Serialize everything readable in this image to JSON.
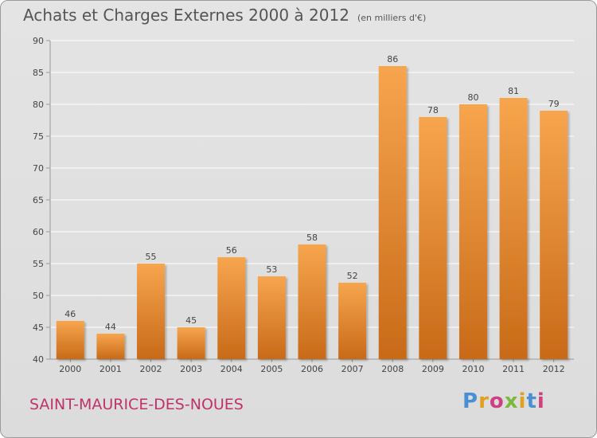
{
  "header": {
    "title": "Achats et Charges Externes 2000 à 2012",
    "unit": "(en milliers d'€)"
  },
  "footer": {
    "commune": "SAINT-MAURICE-DES-NOUES",
    "brand": "Proxiti",
    "brand_letter_colors": [
      "#4a8fd4",
      "#e0a020",
      "#d04080",
      "#7cb83c",
      "#e0a020",
      "#4a8fd4",
      "#d04080"
    ]
  },
  "colors": {
    "bar_light": "#f7a54e",
    "bar_dark": "#c86a18",
    "grid": "#ffffff",
    "axis": "#999999"
  },
  "chart_data": {
    "type": "bar",
    "categories": [
      "2000",
      "2001",
      "2002",
      "2003",
      "2004",
      "2005",
      "2006",
      "2007",
      "2008",
      "2009",
      "2010",
      "2011",
      "2012"
    ],
    "values": [
      46,
      44,
      55,
      45,
      56,
      53,
      58,
      52,
      86,
      78,
      80,
      81,
      79
    ],
    "title": "Achats et Charges Externes 2000 à 2012",
    "xlabel": "",
    "ylabel": "",
    "ylim": [
      40,
      90
    ],
    "yticks": [
      40,
      45,
      50,
      55,
      60,
      65,
      70,
      75,
      80,
      85,
      90
    ],
    "grid": true,
    "data_labels": true
  }
}
